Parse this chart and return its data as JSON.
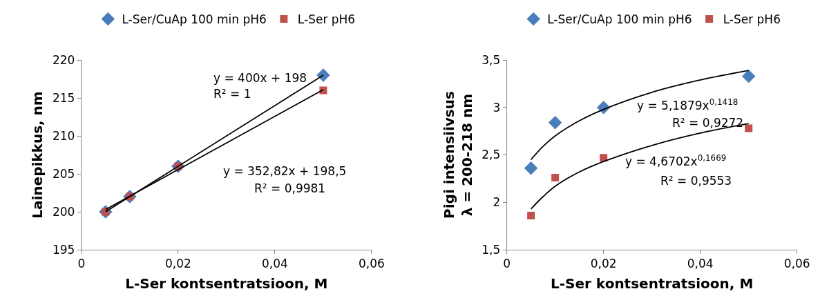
{
  "chart_data": [
    {
      "type": "scatter",
      "xlabel": "L-Ser kontsentratsioon, M",
      "ylabel": "Lainepikkus, nm",
      "legend": "top",
      "grid": false,
      "xlim": [
        0,
        0.06
      ],
      "xticks": [
        0,
        {
          "value": 0.02,
          "label": "0,02"
        },
        {
          "value": 0.04,
          "label": "0,04"
        },
        {
          "value": 0.06,
          "label": "0,06"
        }
      ],
      "ylim": [
        195,
        220
      ],
      "yticks": [
        195,
        200,
        205,
        210,
        215,
        220
      ],
      "x": [
        0.005,
        0.01,
        0.02,
        0.05
      ],
      "series": [
        {
          "name": "L-Ser/CuAp 100 min pH6",
          "color": "#4a7ebb",
          "marker": "diamond",
          "values": [
            200,
            202,
            206,
            218
          ]
        },
        {
          "name": "L-Ser pH6",
          "color": "#c0504d",
          "marker": "square",
          "values": [
            200,
            202,
            206,
            216
          ]
        },
        {
          "type": "line",
          "color": "#000000",
          "x": [
            0.005,
            0.05
          ],
          "values": [
            200,
            218
          ]
        },
        {
          "type": "line",
          "color": "#000000",
          "x": [
            0.005,
            0.05
          ],
          "values": [
            200.3,
            216.1
          ]
        }
      ],
      "annotations": [
        "y = 400x + 198",
        "R² = 1",
        "y = 352,82x + 198,5",
        "R² = 0,9981"
      ]
    },
    {
      "type": "scatter",
      "xlabel": "L-Ser kontsentratsioon, M",
      "ylabel": "Pigi intensiivsus\nλ = 200-218 nm",
      "legend": "top",
      "grid": false,
      "xlim": [
        0,
        0.06
      ],
      "xticks": [
        0,
        {
          "value": 0.02,
          "label": "0,02"
        },
        {
          "value": 0.04,
          "label": "0,04"
        },
        {
          "value": 0.06,
          "label": "0,06"
        }
      ],
      "ylim": [
        1.5,
        3.5
      ],
      "yticks": [
        {
          "value": 1.5,
          "label": "1,5"
        },
        2,
        {
          "value": 2.5,
          "label": "2,5"
        },
        3,
        {
          "value": 3.5,
          "label": "3,5"
        }
      ],
      "x": [
        0.005,
        0.01,
        0.02,
        0.05
      ],
      "series": [
        {
          "name": "L-Ser/CuAp 100 min pH6",
          "color": "#4a7ebb",
          "marker": "diamond",
          "values": [
            2.36,
            2.84,
            3.0,
            3.33
          ]
        },
        {
          "name": "L-Ser pH6",
          "color": "#c0504d",
          "marker": "square",
          "values": [
            1.86,
            2.26,
            2.47,
            2.78
          ]
        },
        {
          "type": "line",
          "color": "#000000",
          "x": [
            0.005,
            0.0075,
            0.01,
            0.015,
            0.02,
            0.03,
            0.04,
            0.05
          ],
          "values": [
            2.45,
            2.59,
            2.7,
            2.86,
            2.98,
            3.16,
            3.29,
            3.39
          ]
        },
        {
          "type": "line",
          "color": "#000000",
          "x": [
            0.005,
            0.0075,
            0.01,
            0.015,
            0.02,
            0.03,
            0.04,
            0.05
          ],
          "values": [
            1.93,
            2.06,
            2.17,
            2.32,
            2.43,
            2.6,
            2.73,
            2.83
          ]
        }
      ],
      "annotations": [
        "y = 5,1879x$^{0,1418}$",
        "R² = 0,9272",
        "y = 4,6702x$^{0,1669}$",
        "R² = 0,9553"
      ]
    }
  ]
}
